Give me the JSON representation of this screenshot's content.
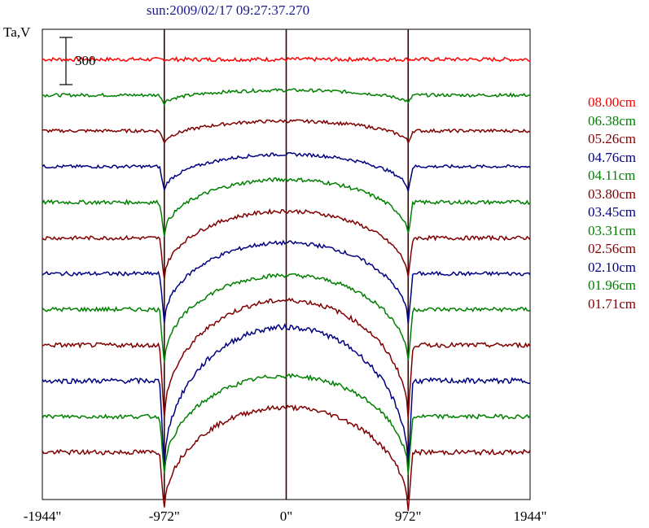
{
  "chart_data": {
    "type": "line",
    "title": "sun:2009/02/17 09:27:37.270",
    "ylabel": "Ta,V",
    "xlabel": "",
    "xlim": [
      -1944,
      1944
    ],
    "x_ticks": [
      "-1944\"",
      "-972\"",
      "0\"",
      "972\"",
      "1944\""
    ],
    "vertical_lines_at": [
      -972,
      0,
      972
    ],
    "scale_bar_label": "300",
    "grid": false,
    "legend_position": "right",
    "series": [
      {
        "name": "08.00cm",
        "color": "#ff0000",
        "offset": 0,
        "limb_drop": 0,
        "center_rise": 0,
        "noise": 1.2
      },
      {
        "name": "06.38cm",
        "color": "#008000",
        "offset": 100,
        "limb_drop": 10,
        "center_rise": 6,
        "noise": 1.0
      },
      {
        "name": "05.26cm",
        "color": "#800000",
        "offset": 200,
        "limb_drop": 15,
        "center_rise": 12,
        "noise": 1.0
      },
      {
        "name": "04.76cm",
        "color": "#000080",
        "offset": 300,
        "limb_drop": 30,
        "center_rise": 15,
        "noise": 1.0
      },
      {
        "name": "04.11cm",
        "color": "#008000",
        "offset": 400,
        "limb_drop": 40,
        "center_rise": 28,
        "noise": 1.2
      },
      {
        "name": "03.80cm",
        "color": "#800000",
        "offset": 500,
        "limb_drop": 50,
        "center_rise": 33,
        "noise": 1.2
      },
      {
        "name": "03.45cm",
        "color": "#000080",
        "offset": 600,
        "limb_drop": 60,
        "center_rise": 38,
        "noise": 1.2
      },
      {
        "name": "03.31cm",
        "color": "#008000",
        "offset": 700,
        "limb_drop": 65,
        "center_rise": 42,
        "noise": 1.3
      },
      {
        "name": "02.56cm",
        "color": "#800000",
        "offset": 800,
        "limb_drop": 90,
        "center_rise": 55,
        "noise": 1.4
      },
      {
        "name": "02.10cm",
        "color": "#000080",
        "offset": 900,
        "limb_drop": 105,
        "center_rise": 66,
        "noise": 1.6
      },
      {
        "name": "01.96cm",
        "color": "#008000",
        "offset": 1000,
        "limb_drop": 70,
        "center_rise": 50,
        "noise": 1.3
      },
      {
        "name": "01.71cm",
        "color": "#800000",
        "offset": 1100,
        "limb_drop": 70,
        "center_rise": 55,
        "noise": 1.5
      }
    ]
  }
}
